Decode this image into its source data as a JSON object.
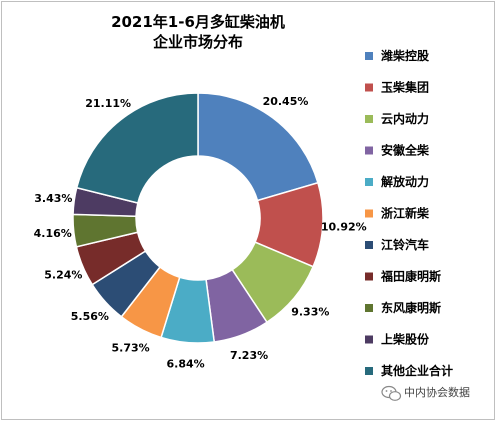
{
  "chart_data": {
    "type": "pie",
    "title_lines": [
      "2021年1-6月多缸柴油机",
      "企业市场分布"
    ],
    "legend_position": "right",
    "slices": [
      {
        "name": "潍柴控股",
        "value": 20.45,
        "label": "20.45%",
        "color": "#4f81bd"
      },
      {
        "name": "玉柴集团",
        "value": 10.92,
        "label": "10.92%",
        "color": "#c0504d"
      },
      {
        "name": "云内动力",
        "value": 9.33,
        "label": "9.33%",
        "color": "#9bbb59"
      },
      {
        "name": "安徽全柴",
        "value": 7.23,
        "label": "7.23%",
        "color": "#8064a2"
      },
      {
        "name": "解放动力",
        "value": 6.84,
        "label": "6.84%",
        "color": "#4bacc6"
      },
      {
        "name": "浙江新柴",
        "value": 5.73,
        "label": "5.73%",
        "color": "#f79646"
      },
      {
        "name": "江铃汽车",
        "value": 5.56,
        "label": "5.56%",
        "color": "#2c4d75"
      },
      {
        "name": "福田康明斯",
        "value": 5.24,
        "label": "5.24%",
        "color": "#772c2a"
      },
      {
        "name": "东风康明斯",
        "value": 4.16,
        "label": "4.16%",
        "color": "#5f7530"
      },
      {
        "name": "上柴股份",
        "value": 3.43,
        "label": "3.43%",
        "color": "#4d3b62"
      },
      {
        "name": "其他企业合计",
        "value": 21.11,
        "label": "21.11%",
        "color": "#276a7c"
      }
    ]
  },
  "watermark": {
    "text": "中内协会数据",
    "icon": "wechat-icon"
  }
}
